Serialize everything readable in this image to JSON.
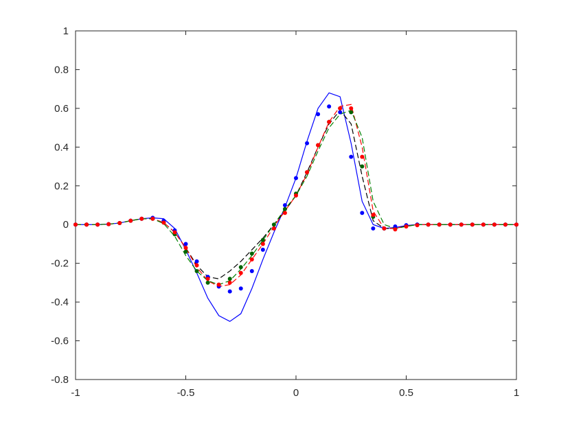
{
  "chart_data": {
    "type": "line",
    "x": [
      -1,
      -0.95,
      -0.9,
      -0.85,
      -0.8,
      -0.75,
      -0.7,
      -0.65,
      -0.6,
      -0.55,
      -0.5,
      -0.45,
      -0.4,
      -0.35,
      -0.3,
      -0.25,
      -0.2,
      -0.15,
      -0.1,
      -0.05,
      0,
      0.05,
      0.1,
      0.15,
      0.2,
      0.25,
      0.3,
      0.35,
      0.4,
      0.45,
      0.5,
      0.55,
      0.6,
      0.65,
      0.7,
      0.75,
      0.8,
      0.85,
      0.9,
      0.95,
      1
    ],
    "series": [
      {
        "color": "#0000ff",
        "style": "solid",
        "values": [
          0,
          0,
          0,
          0.002,
          0.008,
          0.02,
          0.03,
          0.035,
          0.03,
          -0.02,
          -0.13,
          -0.25,
          -0.38,
          -0.47,
          -0.5,
          -0.46,
          -0.33,
          -0.18,
          -0.04,
          0.09,
          0.24,
          0.43,
          0.6,
          0.68,
          0.66,
          0.42,
          0.12,
          0,
          -0.02,
          -0.015,
          -0.005,
          0,
          0,
          0,
          0,
          0,
          0,
          0,
          0,
          0,
          0
        ]
      },
      {
        "color": "#000000",
        "style": "dashed",
        "values": [
          0,
          0,
          0,
          0.002,
          0.008,
          0.02,
          0.03,
          0.03,
          0.01,
          -0.04,
          -0.12,
          -0.21,
          -0.27,
          -0.28,
          -0.24,
          -0.19,
          -0.13,
          -0.07,
          0,
          0.07,
          0.15,
          0.27,
          0.4,
          0.52,
          0.59,
          0.52,
          0.25,
          0.02,
          -0.02,
          -0.02,
          -0.008,
          0,
          0,
          0,
          0,
          0,
          0,
          0,
          0,
          0,
          0
        ]
      },
      {
        "color": "#ff0000",
        "style": "dashed",
        "values": [
          0,
          0,
          0,
          0.002,
          0.008,
          0.02,
          0.03,
          0.03,
          0.01,
          -0.04,
          -0.12,
          -0.22,
          -0.29,
          -0.32,
          -0.31,
          -0.26,
          -0.18,
          -0.1,
          -0.01,
          0.07,
          0.15,
          0.26,
          0.4,
          0.53,
          0.61,
          0.62,
          0.4,
          0.07,
          -0.02,
          -0.02,
          -0.008,
          0,
          0,
          0,
          0,
          0,
          0,
          0,
          0,
          0,
          0
        ]
      },
      {
        "color": "#008000",
        "style": "dashed",
        "values": [
          0,
          0,
          0,
          0.002,
          0.008,
          0.02,
          0.03,
          0.03,
          0.005,
          -0.06,
          -0.16,
          -0.24,
          -0.29,
          -0.31,
          -0.29,
          -0.23,
          -0.16,
          -0.08,
          0,
          0.08,
          0.15,
          0.25,
          0.38,
          0.5,
          0.57,
          0.59,
          0.45,
          0.12,
          0,
          -0.02,
          -0.01,
          0,
          0,
          0,
          0,
          0,
          0,
          0,
          0,
          0,
          0
        ]
      },
      {
        "color": "#006400",
        "style": "dotted",
        "values": [
          0,
          0,
          0,
          0.002,
          0.008,
          0.02,
          0.03,
          0.03,
          0.01,
          -0.05,
          -0.14,
          -0.24,
          -0.3,
          -0.31,
          -0.28,
          -0.22,
          -0.15,
          -0.08,
          0,
          0.08,
          0.16,
          0.27,
          0.41,
          0.53,
          0.6,
          0.58,
          0.3,
          0.04,
          -0.02,
          -0.02,
          -0.005,
          0,
          0,
          0,
          0,
          0,
          0,
          0,
          0,
          0,
          0
        ]
      },
      {
        "color": "#0000ff",
        "style": "dotted",
        "values": [
          0,
          0,
          0,
          0.002,
          0.008,
          0.02,
          0.03,
          0.035,
          0.02,
          -0.03,
          -0.1,
          -0.19,
          -0.27,
          -0.32,
          -0.345,
          -0.33,
          -0.24,
          -0.13,
          -0.02,
          0.1,
          0.24,
          0.42,
          0.57,
          0.61,
          0.58,
          0.35,
          0.06,
          -0.02,
          -0.02,
          -0.01,
          -0.003,
          0,
          0,
          0,
          0,
          0,
          0,
          0,
          0,
          0,
          0
        ]
      },
      {
        "color": "#ff0000",
        "style": "dotted",
        "values": [
          0,
          0,
          0,
          0.002,
          0.008,
          0.02,
          0.03,
          0.03,
          0.01,
          -0.04,
          -0.12,
          -0.21,
          -0.28,
          -0.31,
          -0.3,
          -0.25,
          -0.18,
          -0.1,
          -0.02,
          0.06,
          0.15,
          0.27,
          0.41,
          0.53,
          0.6,
          0.6,
          0.35,
          0.05,
          -0.02,
          -0.025,
          -0.01,
          -0.003,
          0,
          0,
          0,
          0,
          0,
          0,
          0,
          0,
          0
        ]
      }
    ],
    "xlim": [
      -1,
      1
    ],
    "xticks": [
      -1,
      -0.5,
      0,
      0.5,
      1
    ],
    "ylim": [
      -0.8,
      1
    ],
    "yticks": [
      -0.8,
      -0.6,
      -0.4,
      -0.2,
      0,
      0.2,
      0.4,
      0.6,
      0.8,
      1
    ]
  }
}
